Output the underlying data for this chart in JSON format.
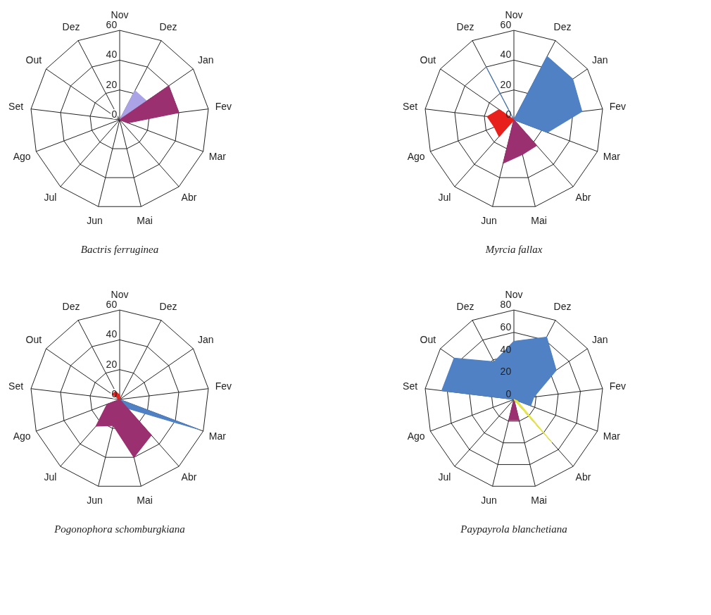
{
  "chart_data": [
    {
      "type": "radar",
      "title": "Bactris ferruginea",
      "categories": [
        "Nov",
        "Dez",
        "Jan",
        "Fev",
        "Mar",
        "Abr",
        "Mai",
        "Jun",
        "Jul",
        "Ago",
        "Set",
        "Out",
        "Dez"
      ],
      "ylim": [
        0,
        60
      ],
      "yticks": [
        0,
        20,
        40,
        60
      ],
      "grid": true,
      "series": [
        {
          "color": "#aaa3e6",
          "values": [
            0,
            22,
            22,
            0,
            0,
            0,
            0,
            0,
            0,
            0,
            0,
            0,
            0
          ]
        },
        {
          "color": "#9b3070",
          "values": [
            0,
            0,
            40,
            40,
            6,
            0,
            0,
            0,
            0,
            0,
            0,
            0,
            0
          ]
        }
      ]
    },
    {
      "type": "radar",
      "title": "Myrcia fallax",
      "categories": [
        "Nov",
        "Dez",
        "Jan",
        "Fev",
        "Mar",
        "Abr",
        "Mai",
        "Jun",
        "Jul",
        "Ago",
        "Set",
        "Out",
        "Dez"
      ],
      "ylim": [
        0,
        60
      ],
      "yticks": [
        0,
        20,
        40,
        60
      ],
      "grid": true,
      "series": [
        {
          "color": "#4f81c4",
          "values": [
            0,
            48,
            48,
            46,
            24,
            0,
            0,
            0,
            0,
            0,
            0,
            0,
            40
          ]
        },
        {
          "color": "#e5e54a",
          "values": [
            0,
            0,
            0,
            0,
            0,
            12,
            0,
            0,
            0,
            0,
            0,
            0,
            0
          ]
        },
        {
          "color": "#9b3070",
          "values": [
            0,
            0,
            0,
            0,
            0,
            23,
            24,
            30,
            0,
            0,
            0,
            0,
            0
          ]
        },
        {
          "color": "#e8201c",
          "values": [
            0,
            0,
            0,
            0,
            0,
            0,
            0,
            0,
            15,
            14,
            18,
            12,
            0
          ]
        }
      ]
    },
    {
      "type": "radar",
      "title": "Pogonophora schomburgkiana",
      "categories": [
        "Nov",
        "Dez",
        "Jan",
        "Fev",
        "Mar",
        "Abr",
        "Mai",
        "Jun",
        "Jul",
        "Ago",
        "Set",
        "Out",
        "Dez"
      ],
      "ylim": [
        0,
        60
      ],
      "yticks": [
        0,
        20,
        40,
        60
      ],
      "grid": true,
      "series": [
        {
          "color": "#4f81c4",
          "values": [
            0,
            0,
            0,
            0,
            57,
            8,
            0,
            0,
            0,
            0,
            0,
            0,
            0
          ]
        },
        {
          "color": "#9b3070",
          "values": [
            0,
            0,
            0,
            0,
            0,
            32,
            40,
            18,
            24,
            9,
            0,
            0,
            0
          ]
        },
        {
          "color": "#e8201c",
          "values": [
            3,
            0,
            0,
            0,
            0,
            0,
            0,
            0,
            0,
            0,
            0,
            6,
            6
          ]
        }
      ]
    },
    {
      "type": "radar",
      "title": "Paypayrola blanchetiana",
      "categories": [
        "Nov",
        "Dez",
        "Jan",
        "Fev",
        "Mar",
        "Abr",
        "Mai",
        "Jun",
        "Jul",
        "Ago",
        "Set",
        "Out",
        "Dez"
      ],
      "ylim": [
        0,
        80
      ],
      "yticks": [
        0,
        20,
        40,
        60,
        80
      ],
      "grid": true,
      "series": [
        {
          "color": "#4f81c4",
          "values": [
            52,
            63,
            46,
            18,
            16,
            0,
            0,
            0,
            0,
            0,
            65,
            65,
            38
          ]
        },
        {
          "color": "#9b3070",
          "values": [
            0,
            0,
            0,
            0,
            0,
            0,
            19,
            19,
            0,
            0,
            0,
            0,
            0
          ]
        },
        {
          "color": "#e5e54a",
          "values": [
            0,
            0,
            0,
            0,
            3,
            51,
            0,
            0,
            0,
            0,
            0,
            0,
            0
          ]
        }
      ]
    }
  ]
}
